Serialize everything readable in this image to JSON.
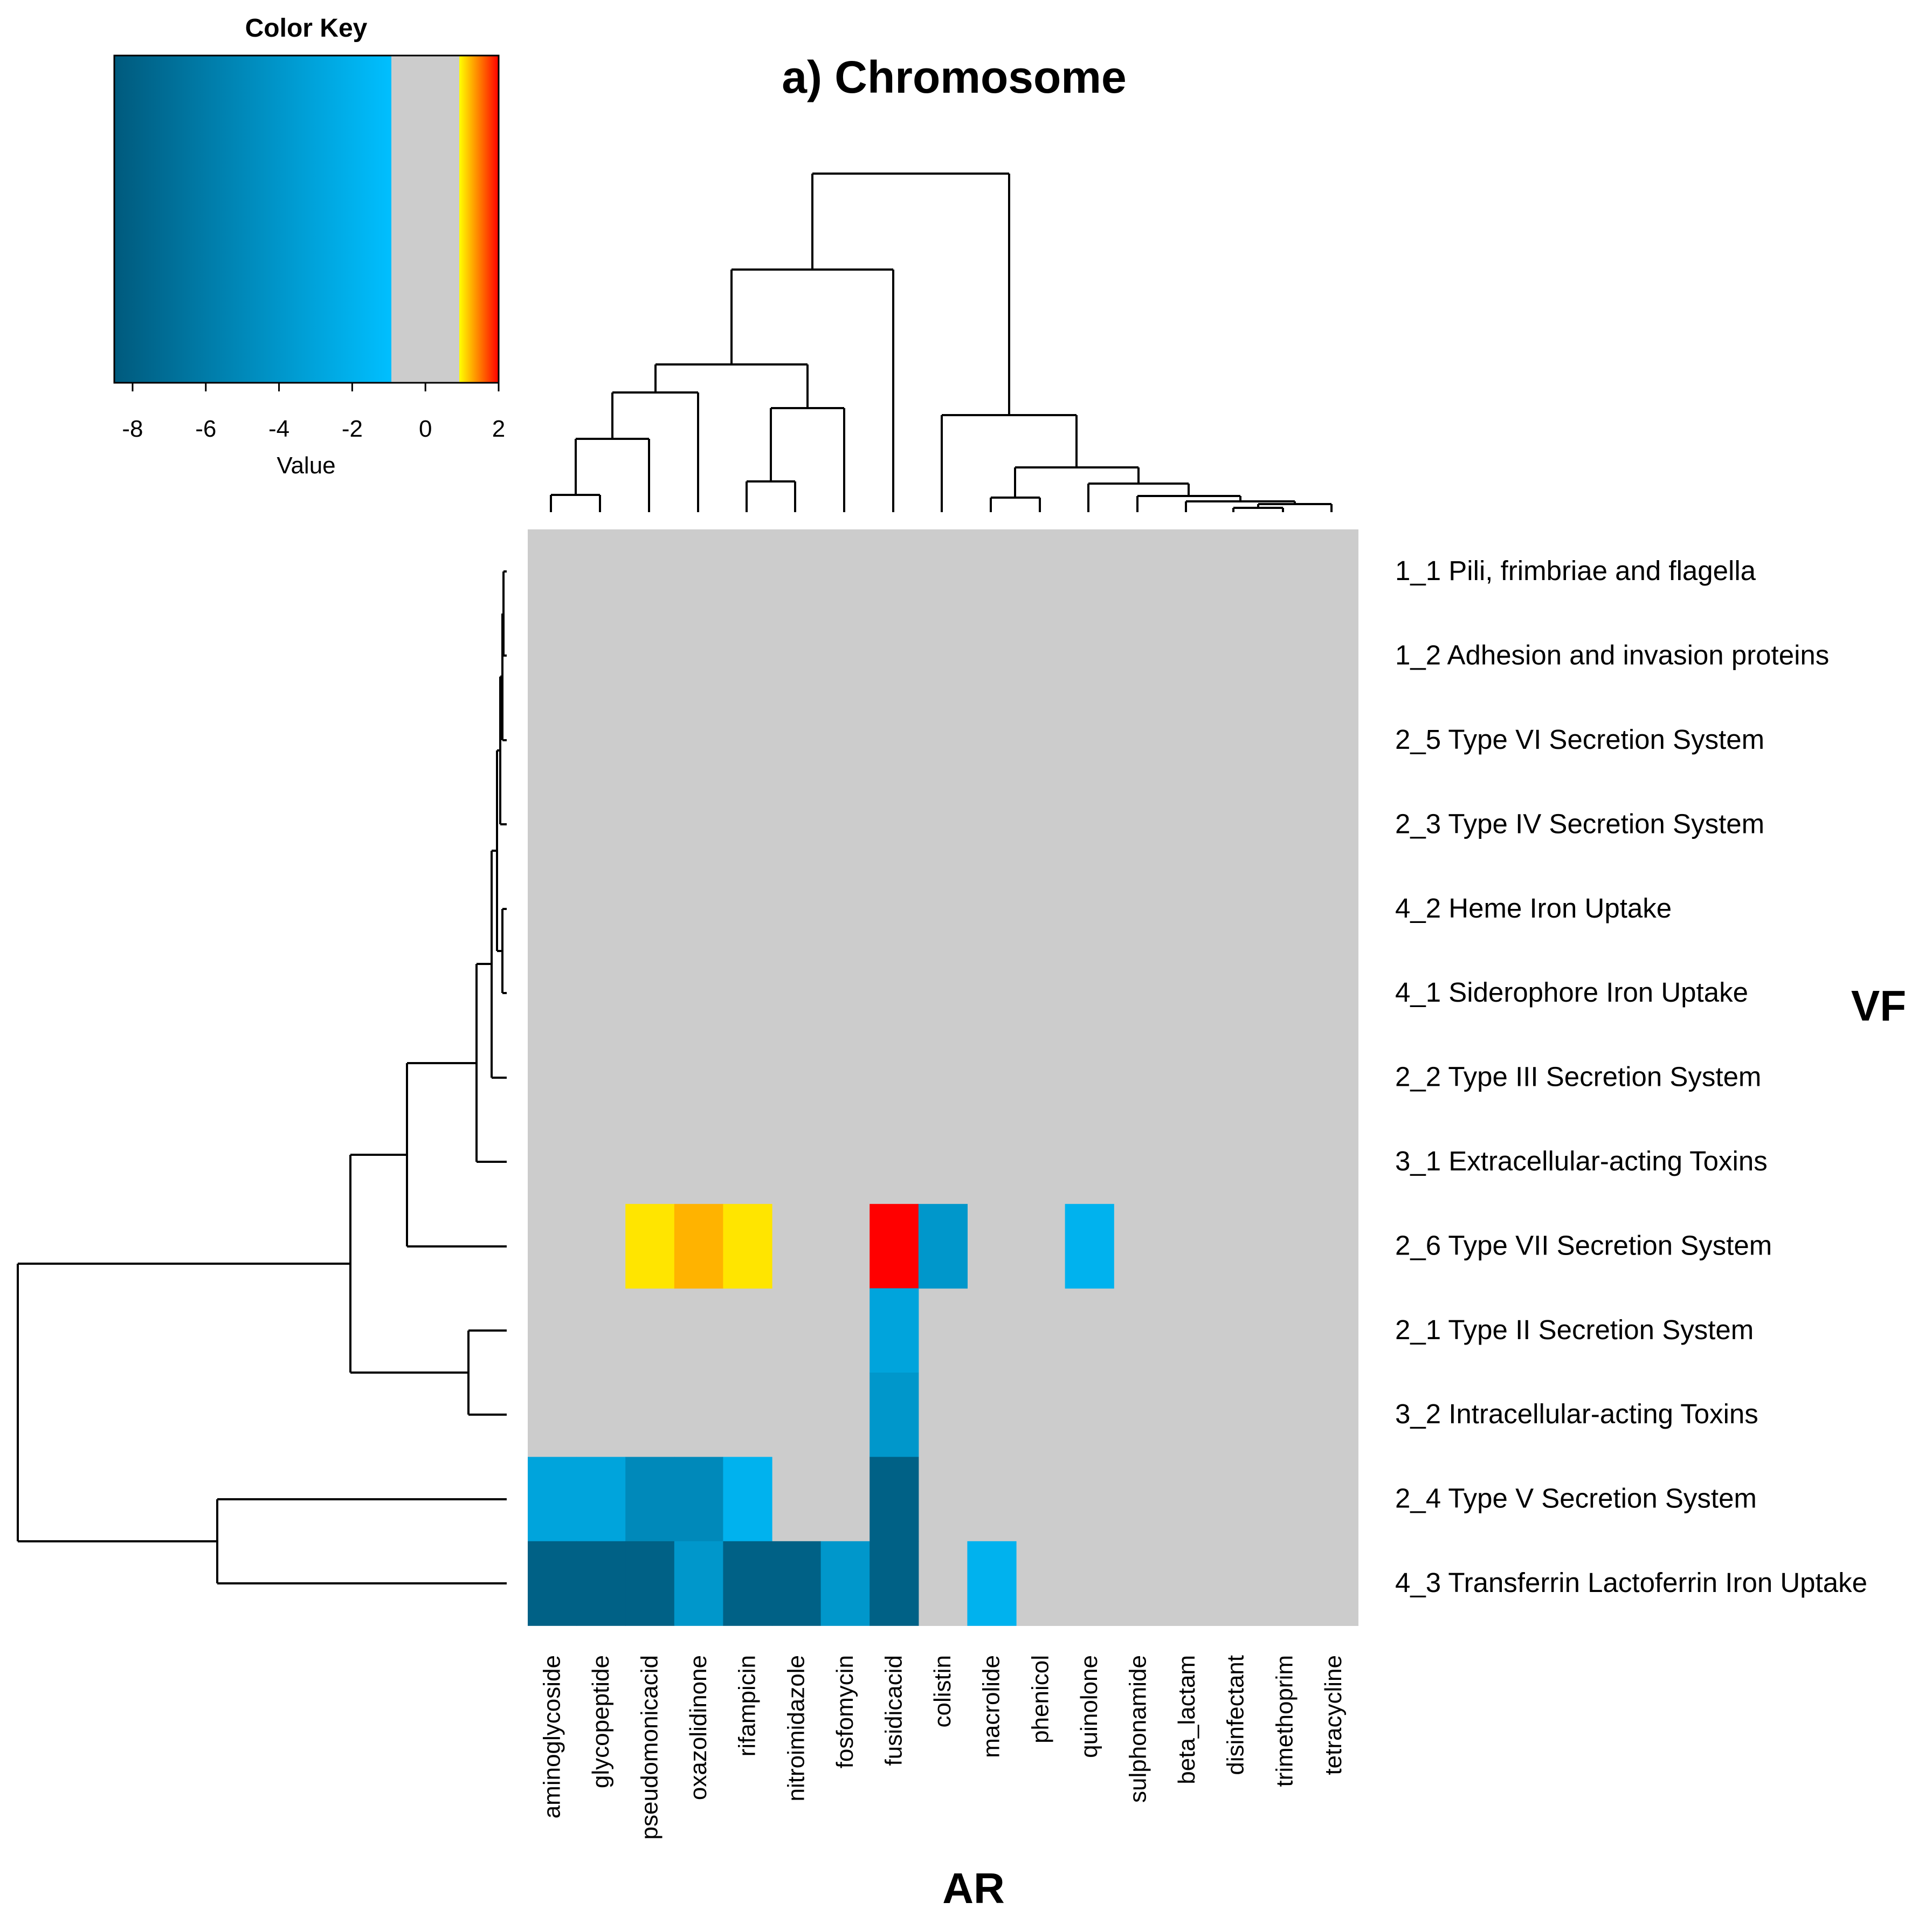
{
  "chart_data": {
    "type": "heatmap",
    "title": "a) Chromosome",
    "xlabel": "AR",
    "ylabel": "VF",
    "columns": [
      "aminoglycoside",
      "glycopeptide",
      "pseudomonicacid",
      "oxazolidinone",
      "rifampicin",
      "nitroimidazole",
      "fosfomycin",
      "fusidicacid",
      "colistin",
      "macrolide",
      "phenicol",
      "quinolone",
      "sulphonamide",
      "beta_lactam",
      "disinfectant",
      "trimethoprim",
      "tetracycline"
    ],
    "rows": [
      "1_1 Pili, frimbriae and flagella",
      "1_2 Adhesion and invasion proteins",
      "2_5 Type VI Secretion System",
      "2_3 Type IV Secretion System",
      "4_2 Heme Iron Uptake",
      "4_1 Siderophore Iron Uptake",
      "2_2 Type III Secretion System",
      "3_1 Extracellular-acting Toxins",
      "2_6 Type VII Secretion System",
      "2_1 Type II Secretion System",
      "3_2 Intracellular-acting Toxins",
      "2_4 Type V Secretion System",
      "4_3 Transferrin Lactoferrin Iron Uptake"
    ],
    "values": [
      [
        0,
        0,
        0,
        0,
        0,
        0,
        0,
        0,
        0,
        0,
        0,
        0,
        0,
        0,
        0,
        0,
        0
      ],
      [
        0,
        0,
        0,
        0,
        0,
        0,
        0,
        0,
        0,
        0,
        0,
        0,
        0,
        0,
        0,
        0,
        0
      ],
      [
        0,
        0,
        0,
        0,
        0,
        0,
        0,
        0,
        0,
        0,
        0,
        0,
        0,
        0,
        0,
        0,
        0
      ],
      [
        0,
        0,
        0,
        0,
        0,
        0,
        0,
        0,
        0,
        0,
        0,
        0,
        0,
        0,
        0,
        0,
        0
      ],
      [
        0,
        0,
        0,
        0,
        0,
        0,
        0,
        0,
        0,
        0,
        0,
        0,
        0,
        0,
        0,
        0,
        0
      ],
      [
        0,
        0,
        0,
        0,
        0,
        0,
        0,
        0,
        0,
        0,
        0,
        0,
        0,
        0,
        0,
        0,
        0
      ],
      [
        0,
        0,
        0,
        0,
        0,
        0,
        0,
        0,
        0,
        0,
        0,
        0,
        0,
        0,
        0,
        0,
        0
      ],
      [
        0,
        0,
        0,
        0,
        0,
        0,
        0,
        0,
        0,
        0,
        0,
        0,
        0,
        0,
        0,
        0,
        0
      ],
      [
        0,
        0,
        1.1,
        1.3,
        1.1,
        0,
        0,
        2,
        -4,
        0,
        0,
        -2,
        0,
        0,
        0,
        0,
        0
      ],
      [
        0,
        0,
        0,
        0,
        0,
        0,
        0,
        -3,
        0,
        0,
        0,
        0,
        0,
        0,
        0,
        0,
        0
      ],
      [
        0,
        0,
        0,
        0,
        0,
        0,
        0,
        -4,
        0,
        0,
        0,
        0,
        0,
        0,
        0,
        0,
        0
      ],
      [
        -3,
        -3,
        -5,
        -5,
        -2,
        0,
        0,
        -8,
        0,
        0,
        0,
        0,
        0,
        0,
        0,
        0,
        0
      ],
      [
        -8,
        -8,
        -8,
        -4,
        -8,
        -8,
        -4,
        -8,
        0,
        -2,
        0,
        0,
        0,
        0,
        0,
        0,
        0
      ]
    ],
    "color_key": {
      "title": "Color Key",
      "xlabel": "Value",
      "range": [
        -8.5,
        2
      ],
      "ticks": [
        -8,
        -6,
        -4,
        -2,
        0,
        2
      ],
      "tick_labels": [
        "-8",
        "-6",
        "-4",
        "-2",
        "0",
        "2"
      ],
      "colors": {
        "dark_blue": "#005a7d",
        "light_blue": "#00bfff",
        "neutral": "#cccccc",
        "yellow": "#ffff00",
        "red": "#ff0000"
      }
    }
  }
}
